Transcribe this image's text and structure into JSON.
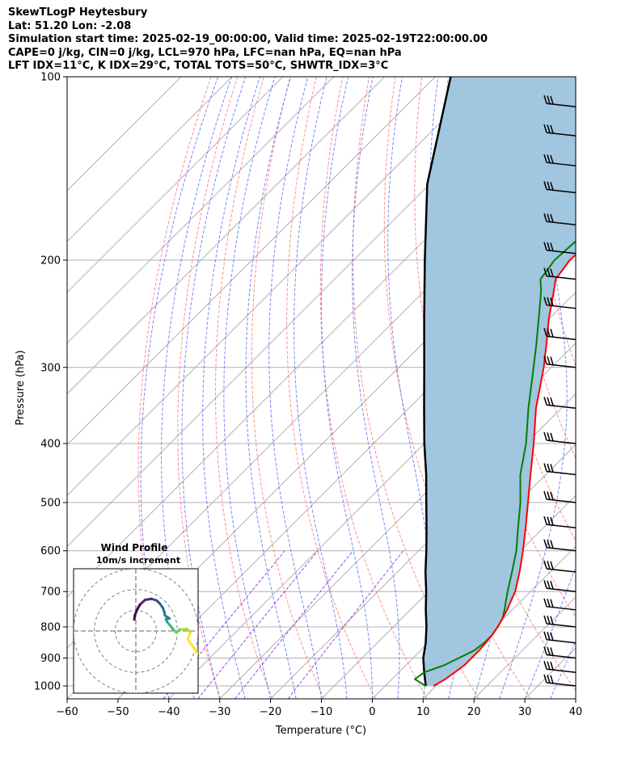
{
  "header": {
    "lines": [
      "SkewTLogP Heytesbury",
      "Lat: 51.20   Lon: -2.08",
      "Simulation start time: 2025-02-19_00:00:00, Valid time: 2025-02-19T22:00:00.00",
      "CAPE=0 j/kg, CIN=0 j/kg, LCL=970 hPa, LFC=nan hPa, EQ=nan hPa",
      "LFT IDX=11°C, K IDX=29°C, TOTAL TOTS=50°C, SHWTR_IDX=3°C"
    ]
  },
  "chart_data": {
    "type": "line",
    "subtype": "skew-t log-p",
    "xlabel": "Temperature (°C)",
    "ylabel": "Pressure (hPa)",
    "xlim": [
      -60,
      40
    ],
    "ylim": [
      1050,
      100
    ],
    "yscale": "log",
    "x_ticks": [
      "−60",
      "−50",
      "−40",
      "−30",
      "−20",
      "−10",
      "0",
      "10",
      "20",
      "30",
      "40"
    ],
    "y_ticks": [
      "100",
      "200",
      "300",
      "400",
      "500",
      "600",
      "700",
      "800",
      "900",
      "1000"
    ],
    "grid": true,
    "colors": {
      "temperature": "#ff0000",
      "dewpoint": "#008000",
      "parcel": "#000000",
      "shade": "#a1c6e0",
      "isotherm": "#b0b0b0",
      "dry_adiabat": "#ff6b6b",
      "moist_adiabat": "#5a6cf5",
      "mixing_ratio": "#8a2be2"
    },
    "series": [
      {
        "key": "temperature",
        "points": [
          [
            1000,
            9.5
          ],
          [
            975,
            10.5
          ],
          [
            950,
            11.0
          ],
          [
            925,
            11.5
          ],
          [
            900,
            11.5
          ],
          [
            875,
            11.5
          ],
          [
            850,
            11.3
          ],
          [
            825,
            11.0
          ],
          [
            800,
            10.5
          ],
          [
            775,
            9.8
          ],
          [
            750,
            9.0
          ],
          [
            725,
            8.0
          ],
          [
            700,
            7.0
          ],
          [
            650,
            4.0
          ],
          [
            600,
            0.5
          ],
          [
            550,
            -3.5
          ],
          [
            500,
            -8.0
          ],
          [
            450,
            -13.0
          ],
          [
            400,
            -18.5
          ],
          [
            350,
            -25.0
          ],
          [
            300,
            -31.5
          ],
          [
            275,
            -35.5
          ],
          [
            250,
            -40.0
          ],
          [
            225,
            -44.5
          ],
          [
            215,
            -46.5
          ],
          [
            200,
            -47.5
          ],
          [
            185,
            -47.0
          ],
          [
            170,
            -46.0
          ],
          [
            160,
            -45.5
          ],
          [
            150,
            -43.0
          ],
          [
            135,
            -38.5
          ],
          [
            120,
            -34.0
          ],
          [
            110,
            -32.5
          ],
          [
            100,
            -31.0
          ]
        ]
      },
      {
        "key": "dewpoint",
        "points": [
          [
            1000,
            8.0
          ],
          [
            975,
            4.5
          ],
          [
            950,
            5.0
          ],
          [
            925,
            7.5
          ],
          [
            900,
            9.0
          ],
          [
            875,
            10.5
          ],
          [
            850,
            11.0
          ],
          [
            825,
            11.0
          ],
          [
            800,
            10.5
          ],
          [
            775,
            9.8
          ],
          [
            750,
            8.5
          ],
          [
            725,
            7.0
          ],
          [
            700,
            5.5
          ],
          [
            650,
            2.5
          ],
          [
            600,
            -0.8
          ],
          [
            550,
            -5.0
          ],
          [
            500,
            -9.5
          ],
          [
            450,
            -15.0
          ],
          [
            400,
            -20.0
          ],
          [
            350,
            -26.5
          ],
          [
            300,
            -33.5
          ],
          [
            275,
            -37.5
          ],
          [
            250,
            -42.0
          ],
          [
            225,
            -47.0
          ],
          [
            215,
            -49.5
          ],
          [
            200,
            -50.5
          ],
          [
            185,
            -50.0
          ],
          [
            170,
            -50.0
          ],
          [
            160,
            -52.0
          ],
          [
            150,
            -56.0
          ],
          [
            140,
            -60.5
          ],
          [
            130,
            -63.0
          ],
          [
            110,
            -58.0
          ],
          [
            100,
            -54.5
          ]
        ]
      },
      {
        "key": "parcel",
        "points": [
          [
            1000,
            8.0
          ],
          [
            975,
            6.5
          ],
          [
            950,
            5.0
          ],
          [
            900,
            2.0
          ],
          [
            850,
            -0.5
          ],
          [
            800,
            -3.5
          ],
          [
            750,
            -7.0
          ],
          [
            700,
            -10.5
          ],
          [
            650,
            -14.5
          ],
          [
            600,
            -18.5
          ],
          [
            550,
            -23.0
          ],
          [
            500,
            -28.0
          ],
          [
            450,
            -33.5
          ],
          [
            400,
            -40.0
          ],
          [
            350,
            -47.0
          ],
          [
            300,
            -55.0
          ],
          [
            250,
            -64.5
          ],
          [
            200,
            -76.0
          ],
          [
            150,
            -90.5
          ],
          [
            100,
            -107.0
          ]
        ]
      }
    ],
    "wind_barbs": [
      {
        "p": 1000
      },
      {
        "p": 950
      },
      {
        "p": 900
      },
      {
        "p": 850
      },
      {
        "p": 800
      },
      {
        "p": 750
      },
      {
        "p": 700
      },
      {
        "p": 650
      },
      {
        "p": 600
      },
      {
        "p": 550
      },
      {
        "p": 500
      },
      {
        "p": 450
      },
      {
        "p": 400
      },
      {
        "p": 350
      },
      {
        "p": 300
      },
      {
        "p": 270
      },
      {
        "p": 240
      },
      {
        "p": 215
      },
      {
        "p": 195
      },
      {
        "p": 175
      },
      {
        "p": 155
      },
      {
        "p": 140
      },
      {
        "p": 125
      },
      {
        "p": 112
      }
    ],
    "hodograph": {
      "title": "Wind Profile",
      "subtitle": "10m/s increment",
      "xlim": [
        -12,
        12
      ],
      "ylim": [
        -12,
        12
      ],
      "rings": [
        4,
        8,
        12
      ],
      "points": [
        [
          12.0,
          -4.5
        ],
        [
          11.0,
          -3.0
        ],
        [
          10.0,
          -1.6
        ],
        [
          10.5,
          -0.2
        ],
        [
          9.8,
          0.4
        ],
        [
          8.5,
          0.3
        ],
        [
          7.8,
          -0.3
        ],
        [
          7.2,
          0.3
        ],
        [
          6.5,
          1.2
        ],
        [
          6.0,
          1.8
        ],
        [
          5.8,
          2.3
        ],
        [
          6.5,
          2.4
        ],
        [
          5.6,
          3.0
        ],
        [
          5.5,
          3.6
        ],
        [
          5.2,
          4.5
        ],
        [
          4.6,
          5.3
        ],
        [
          4.0,
          5.9
        ],
        [
          3.0,
          6.2
        ],
        [
          1.8,
          6.0
        ],
        [
          0.8,
          5.1
        ],
        [
          0.2,
          4.0
        ],
        [
          -0.2,
          3.0
        ],
        [
          -0.3,
          2.2
        ]
      ]
    }
  }
}
